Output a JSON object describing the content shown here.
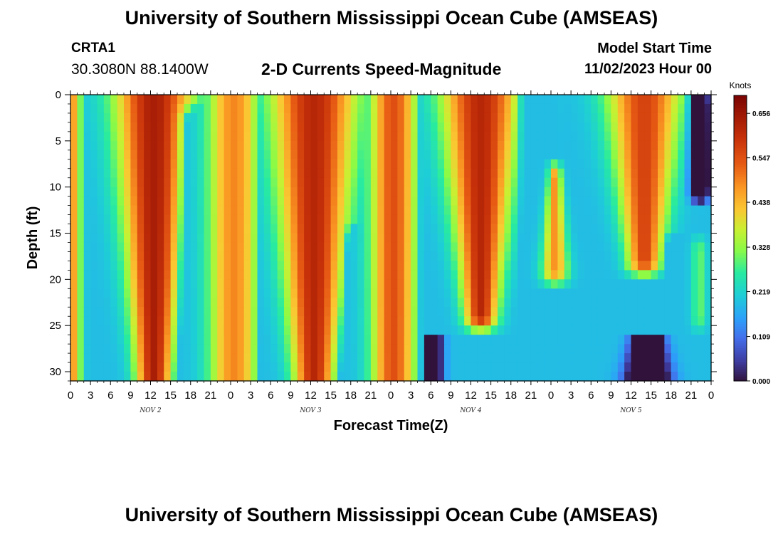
{
  "header": {
    "title": "University of Southern Mississippi Ocean Cube (AMSEAS)",
    "station_name": "CRTA1",
    "station_coords": "30.3080N  88.1400W",
    "plot_title": "2-D Currents Speed-Magnitude",
    "model_start_label": "Model Start Time",
    "model_start_value": "11/02/2023 Hour 00"
  },
  "footer": {
    "title": "University of Southern Mississippi Ocean Cube (AMSEAS)"
  },
  "chart_data": {
    "type": "heatmap",
    "title": "2-D Currents Speed-Magnitude",
    "xlabel": "Forecast Time(Z)",
    "ylabel": "Depth (ft)",
    "x_unit": "hours since 11/02/2023 00Z",
    "xlim": [
      0,
      96
    ],
    "ylim": [
      31,
      0
    ],
    "x_tick_values": [
      0,
      3,
      6,
      9,
      12,
      15,
      18,
      21,
      24,
      27,
      30,
      33,
      36,
      39,
      42,
      45,
      48,
      51,
      54,
      57,
      60,
      63,
      66,
      69,
      72,
      75,
      78,
      81,
      84,
      87,
      90,
      93,
      96
    ],
    "x_tick_labels": [
      "0",
      "3",
      "6",
      "9",
      "12",
      "15",
      "18",
      "21",
      "0",
      "3",
      "6",
      "9",
      "12",
      "15",
      "18",
      "21",
      "0",
      "3",
      "6",
      "9",
      "12",
      "15",
      "18",
      "21",
      "0",
      "3",
      "6",
      "9",
      "12",
      "15",
      "18",
      "21",
      "0"
    ],
    "day_labels": [
      {
        "label": "NOV 2",
        "hour": 12
      },
      {
        "label": "NOV 3",
        "hour": 36
      },
      {
        "label": "NOV 4",
        "hour": 60
      },
      {
        "label": "NOV 5",
        "hour": 84
      }
    ],
    "y_ticks": [
      0,
      5,
      10,
      15,
      20,
      25,
      30
    ],
    "colorbar": {
      "unit": "Knots",
      "min": 0.0,
      "max": 0.7,
      "ticks": [
        "0.000",
        "0.109",
        "0.219",
        "0.328",
        "0.438",
        "0.547",
        "0.656"
      ],
      "tick_values": [
        0.0,
        0.109,
        0.219,
        0.328,
        0.438,
        0.547,
        0.656
      ]
    },
    "speed_features": [
      {
        "type": "max",
        "hour": 0.6,
        "depth": 15,
        "hw": 1.0,
        "topWidth": 1.0,
        "botWidth": 1.0,
        "topDepth": 0,
        "botDepth": 31,
        "amp": 0.46
      },
      {
        "type": "max",
        "hour": 12.5,
        "depth": 15,
        "hw": 4.6,
        "topWidth": 1.25,
        "botWidth": 0.55,
        "topDepth": 0,
        "botDepth": 31,
        "amp": 0.64
      },
      {
        "type": "min",
        "hour": 18.2,
        "depth": 15,
        "hw": 1.6,
        "topWidth": 1.0,
        "botWidth": 1.0,
        "topDepth": 3,
        "botDepth": 31,
        "amp": 0.22
      },
      {
        "type": "max",
        "hour": 24.5,
        "depth": 15,
        "hw": 3.3,
        "topWidth": 1.2,
        "botWidth": 1.1,
        "topDepth": 0,
        "botDepth": 31,
        "amp": 0.49
      },
      {
        "type": "min",
        "hour": 30.0,
        "depth": 15,
        "hw": 1.4,
        "topWidth": 1.0,
        "botWidth": 1.0,
        "topDepth": 0,
        "botDepth": 31,
        "amp": 0.36
      },
      {
        "type": "max",
        "hour": 36.5,
        "depth": 15,
        "hw": 4.9,
        "topWidth": 1.3,
        "botWidth": 0.6,
        "topDepth": 0,
        "botDepth": 31,
        "amp": 0.62
      },
      {
        "type": "min",
        "hour": 42.3,
        "depth": 22,
        "hw": 1.6,
        "topWidth": 0.5,
        "botWidth": 1.0,
        "topDepth": 16,
        "botDepth": 31,
        "amp": 0.28
      },
      {
        "type": "max",
        "hour": 48.4,
        "depth": 15,
        "hw": 3.2,
        "topWidth": 1.1,
        "botWidth": 1.0,
        "topDepth": 0,
        "botDepth": 31,
        "amp": 0.55
      },
      {
        "type": "min",
        "hour": 54.3,
        "depth": 15,
        "hw": 1.4,
        "topWidth": 1.0,
        "botWidth": 1.0,
        "topDepth": 0,
        "botDepth": 31,
        "amp": 0.33
      },
      {
        "type": "max",
        "hour": 61.5,
        "depth": 12,
        "hw": 5.3,
        "topWidth": 1.1,
        "botWidth": 0.45,
        "topDepth": 0,
        "botDepth": 24,
        "amp": 0.62
      },
      {
        "type": "min",
        "hour": 69.5,
        "depth": 8,
        "hw": 1.7,
        "topWidth": 1.0,
        "botWidth": 0.6,
        "topDepth": 0,
        "botDepth": 22,
        "amp": 0.38
      },
      {
        "type": "max",
        "hour": 72.6,
        "depth": 14,
        "hw": 2.4,
        "topWidth": 0.4,
        "botWidth": 0.8,
        "topDepth": 9,
        "botDepth": 19,
        "amp": 0.48
      },
      {
        "type": "max",
        "hour": 86.0,
        "depth": 8,
        "hw": 5.0,
        "topWidth": 1.1,
        "botWidth": 0.5,
        "topDepth": 0,
        "botDepth": 18,
        "amp": 0.57
      },
      {
        "type": "min",
        "hour": 94.3,
        "depth": 5,
        "hw": 1.6,
        "topWidth": 0.8,
        "botWidth": 0.8,
        "topDepth": 1,
        "botDepth": 10,
        "amp": 0.45
      },
      {
        "type": "min",
        "hour": 86.5,
        "depth": 28,
        "hw": 3.0,
        "topWidth": 0.4,
        "botWidth": 1.0,
        "topDepth": 22,
        "botDepth": 31,
        "amp": 0.5
      },
      {
        "type": "min",
        "hour": 90.5,
        "depth": 20,
        "hw": 1.3,
        "topWidth": 0.8,
        "botWidth": 0.8,
        "topDepth": 17,
        "botDepth": 23,
        "amp": 0.38
      },
      {
        "type": "max",
        "hour": 94.2,
        "depth": 20,
        "hw": 1.4,
        "topWidth": 0.8,
        "botWidth": 0.8,
        "topDepth": 17,
        "botDepth": 24,
        "amp": 0.3
      }
    ],
    "background_speed": 0.19
  }
}
